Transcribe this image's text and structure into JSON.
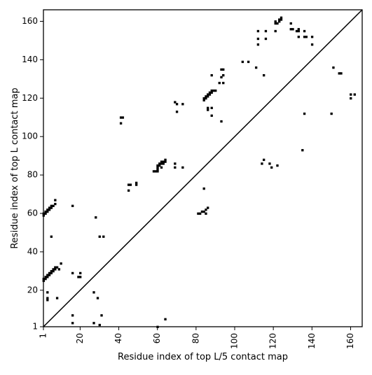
{
  "chart_data": {
    "type": "scatter",
    "xlabel": "Residue index of top L/5 contact map",
    "ylabel": "Residue index of top L contact map",
    "xlim": [
      1,
      166
    ],
    "ylim": [
      1,
      166
    ],
    "x_ticks": [
      1,
      20,
      40,
      60,
      80,
      100,
      120,
      140,
      160
    ],
    "y_ticks": [
      1,
      20,
      40,
      60,
      80,
      100,
      120,
      140,
      160
    ],
    "x_tick_labels": [
      "1",
      "20",
      "40",
      "60",
      "80",
      "100",
      "120",
      "140",
      "160"
    ],
    "y_tick_labels": [
      "1",
      "20",
      "40",
      "60",
      "80",
      "100",
      "120",
      "140",
      "160"
    ],
    "grid": false,
    "diagonal_line": true,
    "marker_color": "#000000",
    "upper_triangle_points": [
      [
        1,
        59
      ],
      [
        1,
        60
      ],
      [
        2,
        60
      ],
      [
        2,
        61
      ],
      [
        3,
        61
      ],
      [
        3,
        62
      ],
      [
        4,
        62
      ],
      [
        4,
        63
      ],
      [
        5,
        63
      ],
      [
        5,
        64
      ],
      [
        6,
        64
      ],
      [
        7,
        65
      ],
      [
        7,
        67
      ],
      [
        5,
        48
      ],
      [
        16,
        64
      ],
      [
        1,
        25
      ],
      [
        1,
        26
      ],
      [
        2,
        26
      ],
      [
        2,
        27
      ],
      [
        3,
        27
      ],
      [
        3,
        28
      ],
      [
        4,
        28
      ],
      [
        4,
        29
      ],
      [
        5,
        29
      ],
      [
        5,
        30
      ],
      [
        6,
        30
      ],
      [
        6,
        31
      ],
      [
        7,
        31
      ],
      [
        7,
        32
      ],
      [
        8,
        32
      ],
      [
        9,
        31
      ],
      [
        10,
        34
      ],
      [
        16,
        29
      ],
      [
        19,
        27
      ],
      [
        20,
        27
      ],
      [
        20,
        29
      ],
      [
        41,
        107
      ],
      [
        41,
        110
      ],
      [
        42,
        110
      ],
      [
        45,
        72
      ],
      [
        45,
        75
      ],
      [
        46,
        75
      ],
      [
        49,
        75
      ],
      [
        49,
        76
      ],
      [
        58,
        82
      ],
      [
        59,
        82
      ],
      [
        60,
        82
      ],
      [
        60,
        83
      ],
      [
        60,
        84
      ],
      [
        60,
        85
      ],
      [
        61,
        85
      ],
      [
        61,
        86
      ],
      [
        62,
        84
      ],
      [
        62,
        86
      ],
      [
        62,
        87
      ],
      [
        63,
        86
      ],
      [
        63,
        87
      ],
      [
        64,
        87
      ],
      [
        64,
        88
      ],
      [
        69,
        84
      ],
      [
        69,
        86
      ],
      [
        69,
        118
      ],
      [
        70,
        113
      ],
      [
        70,
        117
      ],
      [
        73,
        84
      ],
      [
        73,
        117
      ],
      [
        81,
        60
      ],
      [
        82,
        60
      ],
      [
        83,
        61
      ],
      [
        84,
        61
      ],
      [
        84,
        73
      ],
      [
        85,
        60
      ],
      [
        85,
        62
      ],
      [
        86,
        63
      ],
      [
        84,
        119
      ],
      [
        84,
        120
      ],
      [
        85,
        120
      ],
      [
        85,
        121
      ],
      [
        86,
        121
      ],
      [
        86,
        122
      ],
      [
        87,
        122
      ],
      [
        87,
        123
      ],
      [
        88,
        123
      ],
      [
        88,
        124
      ],
      [
        89,
        124
      ],
      [
        90,
        124
      ],
      [
        86,
        114
      ],
      [
        86,
        115
      ],
      [
        88,
        115
      ],
      [
        88,
        111
      ],
      [
        88,
        132
      ],
      [
        92,
        128
      ],
      [
        93,
        108
      ],
      [
        93,
        131
      ],
      [
        93,
        135
      ],
      [
        94,
        132
      ],
      [
        94,
        135
      ],
      [
        94,
        128
      ],
      [
        104,
        139
      ],
      [
        107,
        139
      ],
      [
        111,
        136
      ],
      [
        112,
        148
      ],
      [
        112,
        151
      ],
      [
        112,
        155
      ],
      [
        114,
        86
      ],
      [
        115,
        88
      ],
      [
        115,
        132
      ],
      [
        116,
        151
      ],
      [
        116,
        155
      ],
      [
        118,
        86
      ],
      [
        119,
        84
      ],
      [
        121,
        159
      ],
      [
        121,
        160
      ],
      [
        121,
        155
      ],
      [
        122,
        159
      ],
      [
        122,
        85
      ],
      [
        123,
        160
      ],
      [
        123,
        161
      ],
      [
        124,
        161
      ],
      [
        124,
        162
      ],
      [
        129,
        156
      ],
      [
        129,
        159
      ],
      [
        130,
        156
      ],
      [
        132,
        155
      ],
      [
        133,
        152
      ],
      [
        133,
        155
      ],
      [
        133,
        156
      ],
      [
        135,
        93
      ],
      [
        136,
        112
      ],
      [
        136,
        152
      ],
      [
        136,
        155
      ],
      [
        137,
        152
      ],
      [
        140,
        148
      ],
      [
        140,
        152
      ],
      [
        150,
        112
      ],
      [
        151,
        136
      ],
      [
        154,
        133
      ],
      [
        155,
        133
      ],
      [
        160,
        120
      ],
      [
        160,
        122
      ],
      [
        162,
        122
      ]
    ],
    "lower_triangle_points": [
      [
        3,
        15
      ],
      [
        3,
        16
      ],
      [
        3,
        19
      ],
      [
        8,
        16
      ],
      [
        16,
        7
      ],
      [
        16,
        3
      ],
      [
        27,
        19
      ],
      [
        27,
        3
      ],
      [
        28,
        58
      ],
      [
        29,
        16
      ],
      [
        30,
        2
      ],
      [
        31,
        7
      ],
      [
        30,
        48
      ],
      [
        32,
        48
      ],
      [
        60,
        1
      ],
      [
        64,
        5
      ]
    ]
  }
}
